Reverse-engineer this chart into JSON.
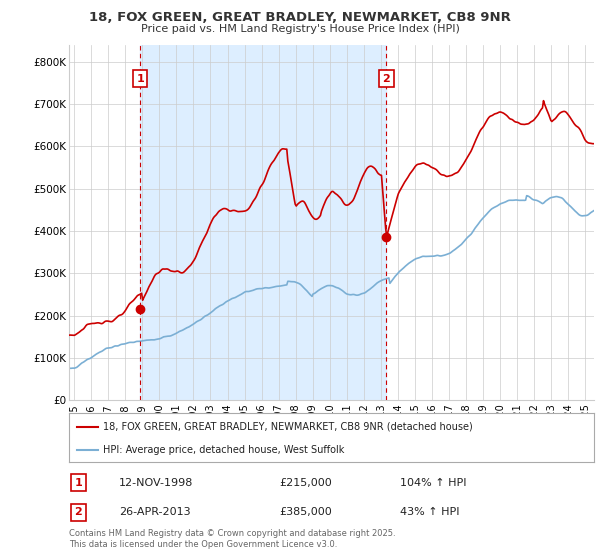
{
  "title": "18, FOX GREEN, GREAT BRADLEY, NEWMARKET, CB8 9NR",
  "subtitle": "Price paid vs. HM Land Registry's House Price Index (HPI)",
  "ylabel_ticks": [
    "£0",
    "£100K",
    "£200K",
    "£300K",
    "£400K",
    "£500K",
    "£600K",
    "£700K",
    "£800K"
  ],
  "ytick_values": [
    0,
    100000,
    200000,
    300000,
    400000,
    500000,
    600000,
    700000,
    800000
  ],
  "ylim": [
    0,
    840000
  ],
  "xlim_start": 1994.7,
  "xlim_end": 2025.5,
  "sale1": {
    "date_num": 1998.87,
    "price": 215000,
    "label": "1",
    "date_str": "12-NOV-1998",
    "amount": "£215,000",
    "hpi": "104% ↑ HPI"
  },
  "sale2": {
    "date_num": 2013.32,
    "price": 385000,
    "label": "2",
    "date_str": "26-APR-2013",
    "amount": "£385,000",
    "hpi": "43% ↑ HPI"
  },
  "red_color": "#cc0000",
  "blue_color": "#7bafd4",
  "shade_color": "#ddeeff",
  "grid_color": "#cccccc",
  "bg_color": "#ffffff",
  "legend_line1": "18, FOX GREEN, GREAT BRADLEY, NEWMARKET, CB8 9NR (detached house)",
  "legend_line2": "HPI: Average price, detached house, West Suffolk",
  "footnote": "Contains HM Land Registry data © Crown copyright and database right 2025.\nThis data is licensed under the Open Government Licence v3.0.",
  "xtick_years": [
    1995,
    1996,
    1997,
    1998,
    1999,
    2000,
    2001,
    2002,
    2003,
    2004,
    2005,
    2006,
    2007,
    2008,
    2009,
    2010,
    2011,
    2012,
    2013,
    2014,
    2015,
    2016,
    2017,
    2018,
    2019,
    2020,
    2021,
    2022,
    2023,
    2024,
    2025
  ]
}
